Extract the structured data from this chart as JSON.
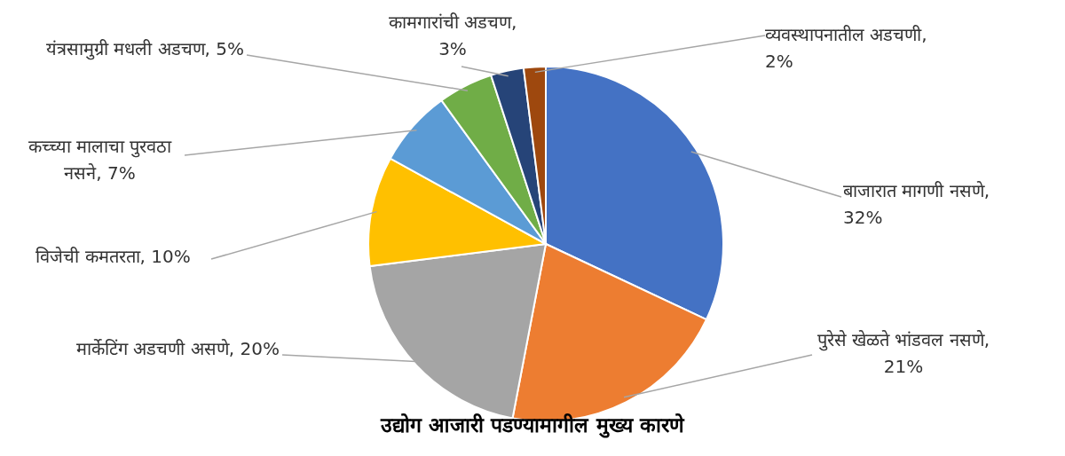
{
  "chart_data": {
    "type": "pie",
    "title": "उद्योग आजारी पडण्यामागील मुख्य कारणे",
    "categories": [
      "बाजारात मागणी नसणे",
      "पुरेसे खेळते भांडवल नसणे",
      "मार्केटिंग अडचणी असणे",
      "विजेची कमतरता",
      "कच्च्या मालाचा पुरवठा नसने",
      "यंत्रसामुग्री मधली अडचण",
      "कामगारांची अडचण",
      "व्यवस्थापनातील अडचणी"
    ],
    "values": [
      32,
      21,
      20,
      10,
      7,
      5,
      3,
      2
    ],
    "value_labels": [
      ", 32%",
      ", 21%",
      ", 20%",
      ", 10%",
      ", 7%",
      ", 5%",
      ", 3%",
      ", 2%"
    ],
    "colors": [
      "#4472c4",
      "#ed7d31",
      "#a5a5a5",
      "#ffc000",
      "#5b9bd5",
      "#70ad47",
      "#264478",
      "#9e480e"
    ]
  }
}
